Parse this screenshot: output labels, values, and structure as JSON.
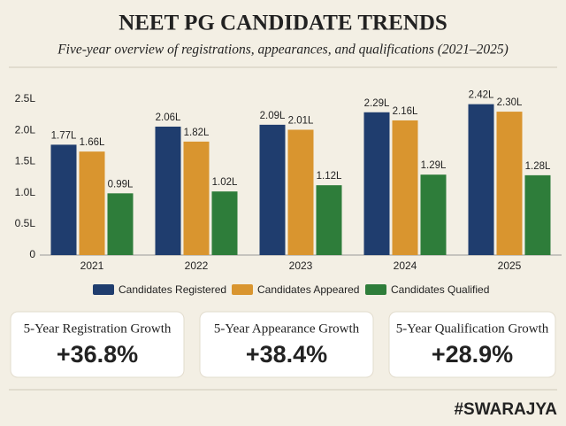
{
  "chart_data": {
    "type": "bar",
    "title": "NEET PG CANDIDATE TRENDS",
    "subtitle": "Five-year overview of registrations, appearances, and qualifications (2021–2025)",
    "categories": [
      "2021",
      "2022",
      "2023",
      "2024",
      "2025"
    ],
    "series": [
      {
        "name": "Candidates Registered",
        "color": "#1f3d6e",
        "values": [
          1.77,
          2.06,
          2.09,
          2.29,
          2.42
        ],
        "value_labels": [
          "1.77L",
          "2.06L",
          "2.09L",
          "2.29L",
          "2.42L"
        ]
      },
      {
        "name": "Candidates Appeared",
        "color": "#d9952f",
        "values": [
          1.66,
          1.82,
          2.01,
          2.16,
          2.3
        ],
        "value_labels": [
          "1.66L",
          "1.82L",
          "2.01L",
          "2.16L",
          "2.30L"
        ]
      },
      {
        "name": "Candidates Qualified",
        "color": "#2e7d3a",
        "values": [
          0.99,
          1.02,
          1.12,
          1.29,
          1.28
        ],
        "value_labels": [
          "0.99L",
          "1.02L",
          "1.12L",
          "1.29L",
          "1.28L"
        ]
      }
    ],
    "ylim": [
      0,
      2.5
    ],
    "yticks": [
      0,
      {
        "value": 0.5,
        "label": "0.5L"
      },
      {
        "value": 1.0,
        "label": "1.0L"
      },
      {
        "value": 1.5,
        "label": "1.5L"
      },
      {
        "value": 2.0,
        "label": "2.0L"
      },
      {
        "value": 2.5,
        "label": "2.5L"
      }
    ],
    "grid": false,
    "legend": "bottom"
  },
  "stats": [
    {
      "label": "5-Year Registration Growth",
      "value": "+36.8%"
    },
    {
      "label": "5-Year Appearance Growth",
      "value": "+38.4%"
    },
    {
      "label": "5-Year Qualification Growth",
      "value": "+28.9%"
    }
  ],
  "brand": "#SWARAJYA"
}
